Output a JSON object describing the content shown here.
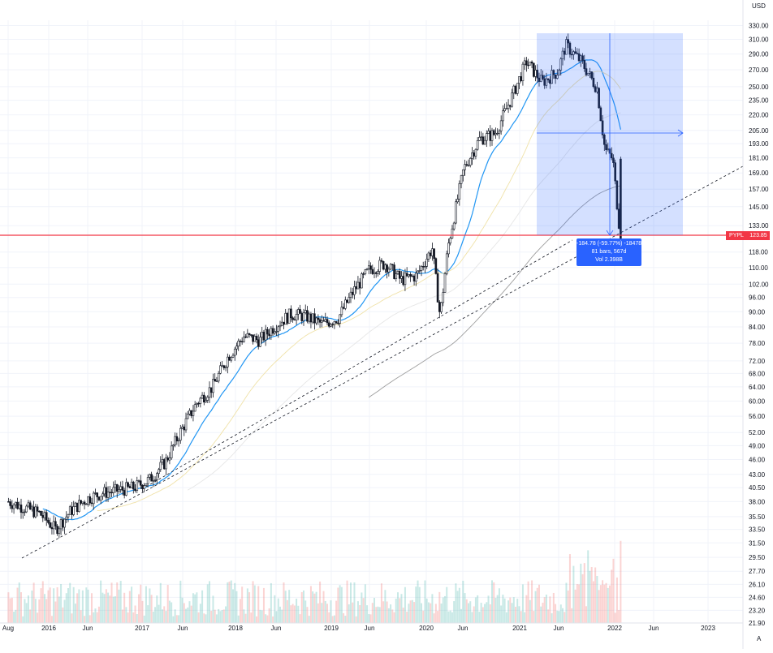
{
  "currency_label": "USD",
  "auto_button": "A",
  "price_tag": {
    "symbol": "PYPL",
    "value": "123.85"
  },
  "measure": {
    "line1": "-184.78 (-59.77%) -18478",
    "line2": "81 bars, 567d",
    "line3": "Vol 2.398B"
  },
  "chart_data": {
    "type": "line",
    "title": "",
    "xlabel": "",
    "ylabel": "",
    "scale": "log",
    "ylim": [
      21.9,
      338
    ],
    "y_ticks": [
      "330.00",
      "310.00",
      "290.00",
      "270.00",
      "250.00",
      "235.00",
      "220.00",
      "205.00",
      "193.00",
      "181.00",
      "169.00",
      "157.00",
      "145.00",
      "133.00",
      "118.00",
      "110.00",
      "102.00",
      "96.00",
      "90.00",
      "84.00",
      "78.00",
      "72.00",
      "68.00",
      "64.00",
      "60.00",
      "56.00",
      "52.00",
      "49.00",
      "46.00",
      "43.00",
      "40.50",
      "38.00",
      "35.50",
      "33.50",
      "31.50",
      "29.50",
      "27.70",
      "26.10",
      "24.60",
      "23.20",
      "21.90"
    ],
    "x_ticks": [
      "Aug",
      "2016",
      "Jun",
      "2017",
      "Jun",
      "2018",
      "Jun",
      "2019",
      "Jun",
      "2020",
      "Jun",
      "2021",
      "Jun",
      "2022",
      "Jun",
      "2023"
    ],
    "series": [
      {
        "x": [
          "2015-08",
          "2015-10",
          "2015-12",
          "2016-02",
          "2016-04",
          "2016-06",
          "2016-08",
          "2016-10",
          "2016-12",
          "2017-02",
          "2017-04",
          "2017-06",
          "2017-08",
          "2017-10",
          "2017-12",
          "2018-02",
          "2018-04",
          "2018-06",
          "2018-08",
          "2018-10",
          "2018-12",
          "2019-02",
          "2019-04",
          "2019-06",
          "2019-08",
          "2019-10",
          "2019-12",
          "2020-02",
          "2020-03",
          "2020-04",
          "2020-06",
          "2020-08",
          "2020-10",
          "2020-12",
          "2021-02",
          "2021-04",
          "2021-06",
          "2021-07",
          "2021-09",
          "2021-11",
          "2021-12",
          "2022-01",
          "2022-02"
        ],
        "values": [
          38,
          37,
          36,
          33.5,
          36.5,
          38.5,
          39.5,
          40,
          40.5,
          42,
          45.5,
          52.5,
          59.5,
          64,
          73.5,
          80.5,
          79,
          84.5,
          89,
          88,
          85,
          87.5,
          99,
          109,
          112,
          104,
          106,
          120,
          88,
          121,
          172,
          197,
          202,
          236,
          280,
          255,
          268,
          302,
          280,
          248,
          188,
          180,
          123.85
        ]
      }
    ],
    "annotations": [
      "measure box",
      "trendline",
      "horizontal line at 123.85"
    ]
  }
}
